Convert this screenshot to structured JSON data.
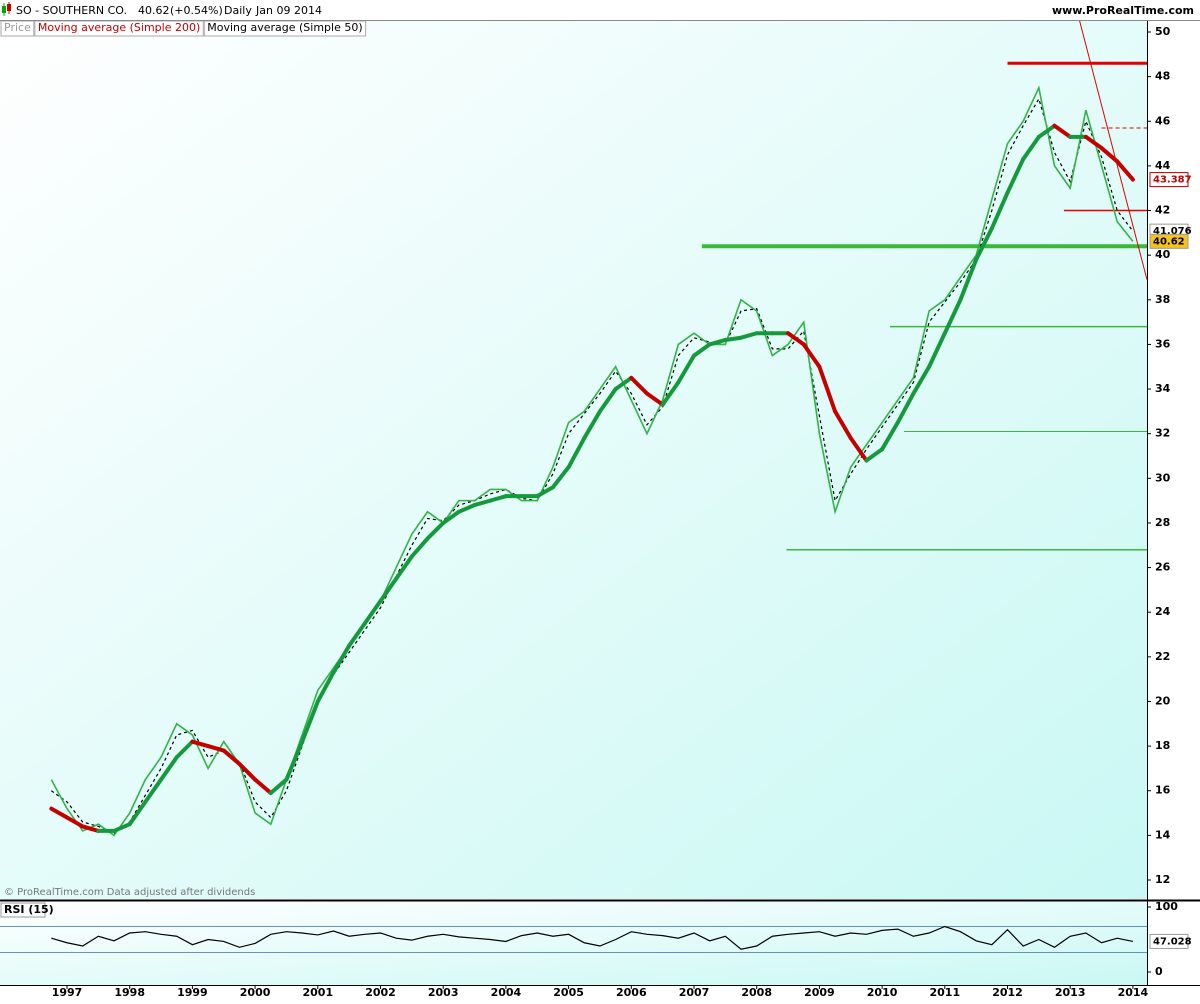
{
  "header": {
    "symbol": "SO - SOUTHERN CO.",
    "change": "(+0.54%)",
    "period": "Daily",
    "date": "Jan 09 2014",
    "site": "www.ProRealTime.com",
    "note": "© ProRealTime.com Data adjusted after dividends"
  },
  "chart_data": [
    {
      "type": "line",
      "categories": [
        null,
        "1997",
        null,
        null,
        null,
        "1998",
        null,
        null,
        null,
        "1999",
        null,
        null,
        null,
        "2000",
        null,
        null,
        null,
        "2001",
        null,
        null,
        null,
        "2002",
        null,
        null,
        null,
        "2003",
        null,
        null,
        null,
        "2004",
        null,
        null,
        null,
        "2005",
        null,
        null,
        null,
        "2006",
        null,
        null,
        null,
        "2007",
        null,
        null,
        null,
        "2008",
        null,
        null,
        null,
        "2009",
        null,
        null,
        null,
        "2010",
        null,
        null,
        null,
        "2011",
        null,
        null,
        null,
        "2012",
        null,
        null,
        null,
        "2013",
        null,
        null,
        null,
        "2014"
      ],
      "series": [
        {
          "name": "Price",
          "color": "#33b24a",
          "tag_fill": "#f6c21c",
          "values": [
            16.5,
            15.2,
            14.2,
            14.5,
            14.0,
            15.0,
            16.5,
            17.5,
            19.0,
            18.5,
            17.0,
            18.2,
            17.2,
            15.0,
            14.5,
            16.5,
            18.5,
            20.5,
            21.5,
            22.5,
            23.5,
            24.5,
            26.0,
            27.5,
            28.5,
            28.0,
            29.0,
            29.0,
            29.5,
            29.5,
            29.0,
            29.0,
            30.5,
            32.5,
            33.0,
            34.0,
            35.0,
            33.5,
            32.0,
            33.5,
            36.0,
            36.5,
            36.0,
            36.0,
            38.0,
            37.5,
            35.5,
            36.0,
            37.0,
            32.0,
            28.5,
            30.5,
            31.5,
            32.5,
            33.5,
            34.5,
            37.5,
            38.0,
            39.0,
            40.0,
            42.5,
            45.0,
            46.0,
            47.5,
            44.0,
            43.0,
            46.5,
            44.0,
            41.5,
            40.62
          ]
        },
        {
          "name": "Moving average (Simple 200)",
          "color": "#c40000",
          "rising_color": "#149a3c",
          "tag_fill": "#ffffff",
          "values": [
            15.2,
            14.8,
            14.4,
            14.2,
            14.2,
            14.5,
            15.5,
            16.5,
            17.5,
            18.2,
            18.0,
            17.8,
            17.2,
            16.5,
            15.9,
            16.5,
            18.2,
            20.0,
            21.3,
            22.5,
            23.5,
            24.5,
            25.5,
            26.5,
            27.3,
            28.0,
            28.5,
            28.8,
            29.0,
            29.2,
            29.2,
            29.2,
            29.6,
            30.5,
            31.8,
            33.0,
            34.0,
            34.5,
            33.8,
            33.3,
            34.3,
            35.5,
            36.0,
            36.2,
            36.3,
            36.5,
            36.5,
            36.5,
            36.0,
            35.0,
            33.0,
            31.8,
            30.8,
            31.3,
            32.5,
            33.8,
            35.0,
            36.5,
            38.0,
            39.8,
            41.2,
            42.8,
            44.3,
            45.3,
            45.8,
            45.3,
            45.3,
            44.8,
            44.2,
            43.387
          ]
        },
        {
          "name": "Moving average (Simple 50)",
          "color": "#000000",
          "tag_fill": "#ffffff",
          "values": [
            16.0,
            15.5,
            14.6,
            14.4,
            14.1,
            14.6,
            15.8,
            17.0,
            18.5,
            18.7,
            17.5,
            17.8,
            17.3,
            15.5,
            14.8,
            16.0,
            18.0,
            20.0,
            21.2,
            22.2,
            23.2,
            24.2,
            25.6,
            27.0,
            28.2,
            28.1,
            28.8,
            29.0,
            29.3,
            29.5,
            29.1,
            29.0,
            30.2,
            32.0,
            32.9,
            33.8,
            34.8,
            33.8,
            32.4,
            33.2,
            35.5,
            36.3,
            36.1,
            36.0,
            37.5,
            37.6,
            35.8,
            35.8,
            36.6,
            32.8,
            29.0,
            30.2,
            31.3,
            32.3,
            33.3,
            34.3,
            37.0,
            37.9,
            38.8,
            39.8,
            42.0,
            44.5,
            45.8,
            47.0,
            44.6,
            43.3,
            46.0,
            44.4,
            42.0,
            41.076
          ]
        }
      ],
      "hlines": [
        {
          "value": 48.6,
          "start": 61,
          "color": "#e00000",
          "width": 3
        },
        {
          "value": 45.7,
          "start": 67,
          "color": "#e00000",
          "width": 1,
          "dashed": true
        },
        {
          "value": 42.0,
          "start": 64.6,
          "color": "#e00000",
          "width": 1.5
        },
        {
          "value": 40.4,
          "start": 41.5,
          "color": "#3bb83b",
          "width": 4
        },
        {
          "value": 36.8,
          "start": 53.5,
          "color": "#3bb83b",
          "width": 1.5
        },
        {
          "value": 32.1,
          "start": 54.4,
          "color": "#3bb83b",
          "width": 1
        },
        {
          "value": 26.8,
          "start": 46.9,
          "color": "#3bb83b",
          "width": 1.5
        }
      ],
      "trendline": {
        "from": [
          65.6,
          50.5
        ],
        "to": [
          69.9,
          38.9
        ],
        "color": "#e00000"
      },
      "ylim": [
        12,
        50
      ],
      "yticks": [
        12,
        14,
        16,
        18,
        20,
        22,
        24,
        26,
        28,
        30,
        32,
        34,
        36,
        38,
        40,
        42,
        44,
        46,
        48,
        50
      ]
    },
    {
      "type": "line",
      "title": "RSI (15)",
      "series": [
        {
          "name": "RSI",
          "color": "#000000",
          "values": [
            52,
            45,
            40,
            55,
            48,
            60,
            62,
            58,
            55,
            42,
            50,
            47,
            38,
            44,
            58,
            62,
            60,
            57,
            63,
            55,
            58,
            60,
            52,
            49,
            55,
            58,
            54,
            52,
            50,
            47,
            56,
            60,
            55,
            58,
            45,
            40,
            50,
            62,
            58,
            56,
            52,
            60,
            48,
            55,
            35,
            40,
            55,
            58,
            60,
            62,
            55,
            60,
            58,
            64,
            66,
            55,
            60,
            70,
            62,
            48,
            42,
            65,
            40,
            50,
            38,
            55,
            60,
            45,
            52,
            47.028
          ]
        }
      ],
      "levels": [
        70,
        30
      ],
      "ylim": [
        0,
        100
      ],
      "yticks": [
        0,
        100
      ]
    }
  ]
}
